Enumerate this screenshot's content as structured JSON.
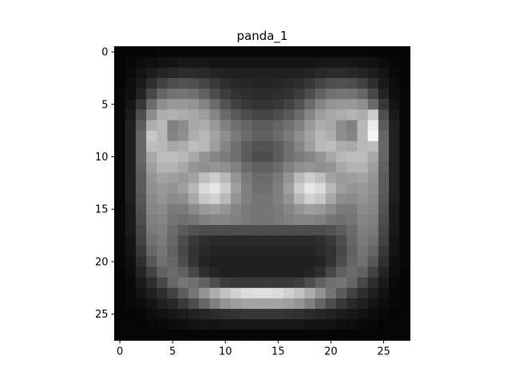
{
  "chart_data": {
    "type": "heatmap",
    "title": "panda_1",
    "xlabel": "",
    "ylabel": "",
    "colormap": "gray",
    "vmin": 0,
    "vmax": 1,
    "grid": false,
    "x_ticks": [
      0,
      5,
      10,
      15,
      20,
      25
    ],
    "y_ticks": [
      0,
      5,
      10,
      15,
      20,
      25
    ],
    "x_tick_labels": [
      "0",
      "5",
      "10",
      "15",
      "20",
      "25"
    ],
    "y_tick_labels": [
      "0",
      "5",
      "10",
      "15",
      "20",
      "25"
    ],
    "xlim": [
      -0.5,
      27.5
    ],
    "ylim": [
      27.5,
      -0.5
    ],
    "rows": 28,
    "cols": 28,
    "values": [
      [
        0.02,
        0.02,
        0.02,
        0.02,
        0.03,
        0.03,
        0.03,
        0.03,
        0.03,
        0.03,
        0.03,
        0.03,
        0.03,
        0.03,
        0.03,
        0.03,
        0.03,
        0.03,
        0.03,
        0.03,
        0.03,
        0.03,
        0.03,
        0.03,
        0.02,
        0.02,
        0.02,
        0.02
      ],
      [
        0.02,
        0.03,
        0.05,
        0.06,
        0.07,
        0.08,
        0.09,
        0.09,
        0.09,
        0.08,
        0.08,
        0.08,
        0.08,
        0.08,
        0.08,
        0.08,
        0.08,
        0.08,
        0.08,
        0.09,
        0.09,
        0.09,
        0.09,
        0.08,
        0.07,
        0.05,
        0.03,
        0.02
      ],
      [
        0.02,
        0.04,
        0.08,
        0.11,
        0.14,
        0.16,
        0.17,
        0.17,
        0.16,
        0.14,
        0.13,
        0.12,
        0.12,
        0.12,
        0.12,
        0.12,
        0.12,
        0.13,
        0.14,
        0.16,
        0.17,
        0.17,
        0.16,
        0.14,
        0.11,
        0.08,
        0.04,
        0.02
      ],
      [
        0.02,
        0.05,
        0.1,
        0.18,
        0.26,
        0.3,
        0.32,
        0.31,
        0.27,
        0.22,
        0.18,
        0.16,
        0.15,
        0.14,
        0.14,
        0.15,
        0.16,
        0.18,
        0.22,
        0.27,
        0.31,
        0.32,
        0.3,
        0.26,
        0.18,
        0.1,
        0.05,
        0.02
      ],
      [
        0.03,
        0.06,
        0.14,
        0.28,
        0.4,
        0.45,
        0.46,
        0.44,
        0.38,
        0.3,
        0.24,
        0.2,
        0.18,
        0.17,
        0.17,
        0.18,
        0.2,
        0.24,
        0.3,
        0.38,
        0.44,
        0.46,
        0.45,
        0.4,
        0.28,
        0.14,
        0.06,
        0.03
      ],
      [
        0.03,
        0.08,
        0.22,
        0.42,
        0.56,
        0.6,
        0.6,
        0.58,
        0.52,
        0.42,
        0.32,
        0.26,
        0.22,
        0.2,
        0.2,
        0.22,
        0.26,
        0.32,
        0.42,
        0.52,
        0.58,
        0.6,
        0.6,
        0.56,
        0.42,
        0.22,
        0.08,
        0.03
      ],
      [
        0.03,
        0.1,
        0.3,
        0.55,
        0.68,
        0.7,
        0.68,
        0.66,
        0.62,
        0.52,
        0.42,
        0.35,
        0.3,
        0.27,
        0.27,
        0.3,
        0.35,
        0.42,
        0.52,
        0.62,
        0.66,
        0.68,
        0.7,
        0.68,
        0.8,
        0.3,
        0.1,
        0.03
      ],
      [
        0.03,
        0.12,
        0.36,
        0.68,
        0.72,
        0.5,
        0.55,
        0.66,
        0.68,
        0.6,
        0.5,
        0.44,
        0.4,
        0.36,
        0.36,
        0.4,
        0.44,
        0.5,
        0.6,
        0.68,
        0.66,
        0.55,
        0.5,
        0.72,
        0.92,
        0.36,
        0.12,
        0.03
      ],
      [
        0.03,
        0.12,
        0.4,
        0.78,
        0.72,
        0.52,
        0.56,
        0.68,
        0.72,
        0.64,
        0.56,
        0.48,
        0.42,
        0.38,
        0.38,
        0.42,
        0.48,
        0.56,
        0.64,
        0.72,
        0.68,
        0.56,
        0.52,
        0.72,
        0.96,
        0.4,
        0.12,
        0.03
      ],
      [
        0.03,
        0.12,
        0.4,
        0.74,
        0.72,
        0.66,
        0.68,
        0.74,
        0.72,
        0.62,
        0.52,
        0.44,
        0.36,
        0.32,
        0.32,
        0.36,
        0.44,
        0.52,
        0.62,
        0.72,
        0.74,
        0.68,
        0.66,
        0.72,
        0.74,
        0.4,
        0.12,
        0.03
      ],
      [
        0.03,
        0.12,
        0.4,
        0.66,
        0.74,
        0.74,
        0.72,
        0.66,
        0.58,
        0.52,
        0.48,
        0.44,
        0.36,
        0.3,
        0.3,
        0.36,
        0.44,
        0.48,
        0.52,
        0.58,
        0.66,
        0.72,
        0.74,
        0.74,
        0.66,
        0.4,
        0.12,
        0.03
      ],
      [
        0.03,
        0.12,
        0.38,
        0.62,
        0.7,
        0.7,
        0.66,
        0.58,
        0.56,
        0.58,
        0.56,
        0.5,
        0.42,
        0.38,
        0.38,
        0.42,
        0.5,
        0.56,
        0.58,
        0.56,
        0.58,
        0.66,
        0.7,
        0.7,
        0.62,
        0.38,
        0.12,
        0.03
      ],
      [
        0.03,
        0.12,
        0.36,
        0.58,
        0.64,
        0.62,
        0.6,
        0.64,
        0.74,
        0.8,
        0.72,
        0.58,
        0.48,
        0.42,
        0.42,
        0.48,
        0.58,
        0.72,
        0.8,
        0.74,
        0.64,
        0.6,
        0.62,
        0.64,
        0.58,
        0.36,
        0.12,
        0.03
      ],
      [
        0.03,
        0.12,
        0.36,
        0.56,
        0.6,
        0.58,
        0.62,
        0.72,
        0.86,
        0.9,
        0.8,
        0.62,
        0.5,
        0.44,
        0.44,
        0.5,
        0.62,
        0.8,
        0.9,
        0.86,
        0.72,
        0.62,
        0.58,
        0.6,
        0.56,
        0.36,
        0.12,
        0.03
      ],
      [
        0.03,
        0.12,
        0.34,
        0.54,
        0.58,
        0.54,
        0.56,
        0.66,
        0.78,
        0.82,
        0.72,
        0.58,
        0.5,
        0.46,
        0.46,
        0.5,
        0.58,
        0.72,
        0.82,
        0.78,
        0.66,
        0.56,
        0.54,
        0.58,
        0.54,
        0.34,
        0.12,
        0.03
      ],
      [
        0.03,
        0.1,
        0.32,
        0.52,
        0.54,
        0.48,
        0.48,
        0.54,
        0.6,
        0.62,
        0.58,
        0.52,
        0.48,
        0.46,
        0.46,
        0.48,
        0.52,
        0.58,
        0.62,
        0.6,
        0.54,
        0.48,
        0.48,
        0.54,
        0.52,
        0.32,
        0.1,
        0.03
      ],
      [
        0.03,
        0.1,
        0.3,
        0.5,
        0.52,
        0.46,
        0.44,
        0.46,
        0.5,
        0.52,
        0.52,
        0.5,
        0.48,
        0.46,
        0.46,
        0.48,
        0.5,
        0.52,
        0.52,
        0.5,
        0.46,
        0.44,
        0.46,
        0.52,
        0.5,
        0.3,
        0.1,
        0.03
      ],
      [
        0.03,
        0.1,
        0.28,
        0.48,
        0.5,
        0.42,
        0.36,
        0.32,
        0.3,
        0.3,
        0.3,
        0.3,
        0.3,
        0.3,
        0.3,
        0.3,
        0.3,
        0.3,
        0.3,
        0.3,
        0.32,
        0.36,
        0.42,
        0.5,
        0.48,
        0.28,
        0.1,
        0.03
      ],
      [
        0.03,
        0.08,
        0.26,
        0.44,
        0.48,
        0.4,
        0.3,
        0.22,
        0.18,
        0.16,
        0.16,
        0.16,
        0.16,
        0.16,
        0.16,
        0.16,
        0.16,
        0.16,
        0.16,
        0.18,
        0.22,
        0.3,
        0.4,
        0.48,
        0.44,
        0.26,
        0.08,
        0.03
      ],
      [
        0.03,
        0.08,
        0.22,
        0.4,
        0.46,
        0.38,
        0.28,
        0.2,
        0.16,
        0.14,
        0.14,
        0.14,
        0.14,
        0.14,
        0.14,
        0.14,
        0.14,
        0.14,
        0.14,
        0.16,
        0.2,
        0.28,
        0.38,
        0.46,
        0.4,
        0.22,
        0.08,
        0.03
      ],
      [
        0.03,
        0.06,
        0.18,
        0.34,
        0.44,
        0.4,
        0.3,
        0.2,
        0.14,
        0.12,
        0.12,
        0.12,
        0.12,
        0.12,
        0.12,
        0.12,
        0.12,
        0.12,
        0.12,
        0.14,
        0.2,
        0.3,
        0.4,
        0.44,
        0.34,
        0.18,
        0.06,
        0.03
      ],
      [
        0.02,
        0.05,
        0.14,
        0.26,
        0.38,
        0.42,
        0.38,
        0.28,
        0.18,
        0.14,
        0.12,
        0.12,
        0.12,
        0.12,
        0.12,
        0.12,
        0.12,
        0.12,
        0.14,
        0.18,
        0.28,
        0.38,
        0.42,
        0.38,
        0.26,
        0.14,
        0.05,
        0.02
      ],
      [
        0.02,
        0.04,
        0.1,
        0.18,
        0.28,
        0.4,
        0.46,
        0.44,
        0.38,
        0.3,
        0.24,
        0.22,
        0.22,
        0.22,
        0.22,
        0.22,
        0.22,
        0.24,
        0.3,
        0.38,
        0.44,
        0.46,
        0.4,
        0.28,
        0.18,
        0.1,
        0.04,
        0.02
      ],
      [
        0.02,
        0.03,
        0.07,
        0.12,
        0.18,
        0.26,
        0.36,
        0.46,
        0.58,
        0.68,
        0.76,
        0.82,
        0.86,
        0.88,
        0.88,
        0.86,
        0.82,
        0.76,
        0.68,
        0.58,
        0.46,
        0.36,
        0.26,
        0.18,
        0.12,
        0.07,
        0.03,
        0.02
      ],
      [
        0.02,
        0.03,
        0.05,
        0.08,
        0.12,
        0.16,
        0.22,
        0.3,
        0.4,
        0.5,
        0.58,
        0.62,
        0.64,
        0.64,
        0.64,
        0.64,
        0.62,
        0.58,
        0.5,
        0.4,
        0.3,
        0.22,
        0.16,
        0.12,
        0.08,
        0.05,
        0.03,
        0.02
      ],
      [
        0.02,
        0.02,
        0.03,
        0.05,
        0.07,
        0.09,
        0.11,
        0.13,
        0.15,
        0.17,
        0.19,
        0.2,
        0.21,
        0.21,
        0.21,
        0.21,
        0.2,
        0.19,
        0.17,
        0.15,
        0.13,
        0.11,
        0.09,
        0.07,
        0.05,
        0.03,
        0.02,
        0.02
      ],
      [
        0.02,
        0.02,
        0.02,
        0.03,
        0.04,
        0.05,
        0.06,
        0.07,
        0.08,
        0.08,
        0.09,
        0.09,
        0.09,
        0.09,
        0.09,
        0.09,
        0.09,
        0.09,
        0.08,
        0.08,
        0.07,
        0.06,
        0.05,
        0.04,
        0.03,
        0.02,
        0.02,
        0.02
      ],
      [
        0.02,
        0.02,
        0.02,
        0.02,
        0.02,
        0.02,
        0.02,
        0.02,
        0.02,
        0.02,
        0.02,
        0.02,
        0.02,
        0.02,
        0.02,
        0.02,
        0.02,
        0.02,
        0.02,
        0.02,
        0.02,
        0.02,
        0.02,
        0.02,
        0.02,
        0.02,
        0.02,
        0.02
      ]
    ]
  }
}
